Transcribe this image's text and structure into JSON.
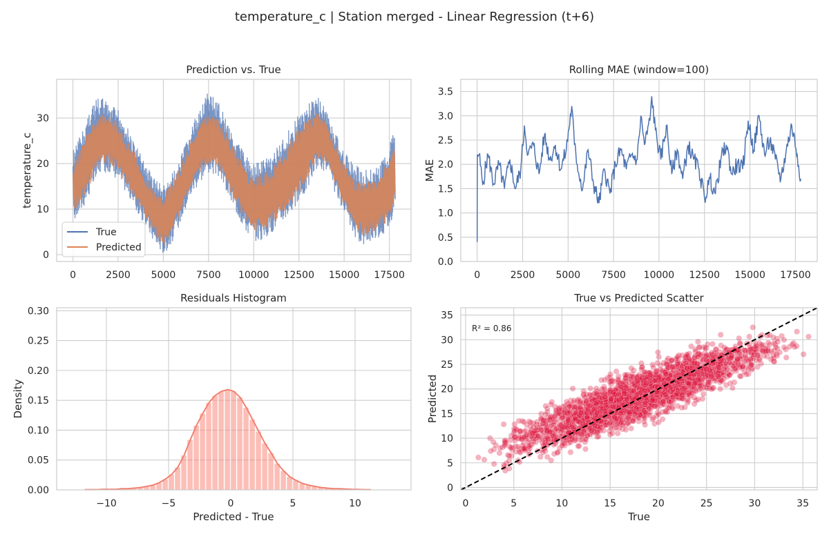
{
  "figure": {
    "title": "temperature_c | Station merged - Linear Regression (t+6)"
  },
  "chart_data": [
    {
      "type": "line",
      "title": "Prediction vs. True",
      "xlabel": "",
      "ylabel": "temperature_c",
      "xlim": [
        -900,
        18700
      ],
      "ylim": [
        -1.5,
        38.5
      ],
      "xticks": [
        0,
        2500,
        5000,
        7500,
        10000,
        12500,
        15000,
        17500
      ],
      "yticks": [
        0,
        10,
        20,
        30
      ],
      "legend": {
        "position": "lower-left",
        "entries": [
          "True",
          "Predicted"
        ]
      },
      "series": [
        {
          "name": "True",
          "color": "#4c72b0",
          "x": [
            0,
            500,
            1000,
            1500,
            2000,
            2500,
            3000,
            3500,
            4000,
            4500,
            5000,
            5500,
            6000,
            6500,
            7000,
            7500,
            8000,
            8500,
            9000,
            9500,
            10000,
            10500,
            11000,
            11500,
            12000,
            12500,
            13000,
            13500,
            14000,
            14500,
            15000,
            15500,
            16000,
            16500,
            17000,
            17500,
            17800
          ],
          "upper": [
            23,
            27,
            33,
            35,
            33,
            32,
            28,
            24,
            20,
            17,
            15,
            18,
            22,
            27,
            33,
            36,
            34,
            30,
            26,
            22,
            20,
            21,
            22,
            25,
            28,
            31,
            33,
            35,
            32,
            27,
            23,
            20,
            19,
            19,
            20,
            24,
            28
          ],
          "lower": [
            7,
            10,
            14,
            18,
            18,
            16,
            13,
            9,
            6,
            2,
            0,
            3,
            8,
            13,
            16,
            18,
            17,
            13,
            9,
            5,
            3,
            3,
            5,
            7,
            9,
            11,
            15,
            19,
            18,
            13,
            8,
            4,
            2,
            3,
            4,
            6,
            12
          ]
        },
        {
          "name": "Predicted",
          "color": "#dd8452",
          "x": [
            0,
            500,
            1000,
            1500,
            2000,
            2500,
            3000,
            3500,
            4000,
            4500,
            5000,
            5500,
            6000,
            6500,
            7000,
            7500,
            8000,
            8500,
            9000,
            9500,
            10000,
            10500,
            11000,
            11500,
            12000,
            12500,
            13000,
            13500,
            14000,
            14500,
            15000,
            15500,
            16000,
            16500,
            17000,
            17500,
            17800
          ],
          "upper": [
            20,
            24,
            29,
            31,
            31,
            29,
            25,
            22,
            17,
            14,
            13,
            16,
            20,
            25,
            29,
            31,
            30,
            27,
            23,
            19,
            17,
            18,
            19,
            22,
            25,
            28,
            30,
            32,
            29,
            25,
            20,
            17,
            16,
            16,
            18,
            21,
            24
          ],
          "lower": [
            9,
            12,
            16,
            20,
            20,
            18,
            15,
            11,
            8,
            4,
            2,
            5,
            10,
            15,
            18,
            20,
            19,
            15,
            11,
            7,
            5,
            5,
            7,
            9,
            11,
            13,
            17,
            21,
            20,
            15,
            10,
            6,
            4,
            5,
            6,
            8,
            13
          ]
        }
      ]
    },
    {
      "type": "line",
      "title": "Rolling MAE (window=100)",
      "xlabel": "",
      "ylabel": "MAE",
      "xlim": [
        -900,
        18700
      ],
      "ylim": [
        0,
        3.75
      ],
      "xticks": [
        0,
        2500,
        5000,
        7500,
        10000,
        12500,
        15000,
        17500
      ],
      "yticks": [
        0.0,
        0.5,
        1.0,
        1.5,
        2.0,
        2.5,
        3.0,
        3.5
      ],
      "series": [
        {
          "name": "MAE",
          "color": "#4c72b0",
          "x": [
            0,
            10,
            100,
            300,
            600,
            900,
            1200,
            1500,
            1800,
            2100,
            2400,
            2600,
            2800,
            3100,
            3400,
            3700,
            4000,
            4300,
            4600,
            4900,
            5200,
            5350,
            5500,
            5800,
            6100,
            6400,
            6700,
            7000,
            7300,
            7600,
            7900,
            8200,
            8500,
            8800,
            9000,
            9200,
            9500,
            9600,
            9800,
            10100,
            10400,
            10700,
            11000,
            11300,
            11600,
            11900,
            12200,
            12500,
            12800,
            13100,
            13400,
            13700,
            14000,
            14300,
            14600,
            14900,
            15200,
            15500,
            15800,
            16100,
            16400,
            16700,
            17000,
            17300,
            17600,
            17800
          ],
          "values": [
            0.4,
            2.2,
            2.2,
            1.6,
            2.2,
            1.6,
            2.0,
            1.5,
            2.1,
            1.5,
            1.9,
            2.8,
            2.2,
            2.4,
            1.8,
            2.6,
            2.1,
            2.4,
            1.9,
            2.3,
            3.2,
            2.4,
            2.0,
            1.5,
            2.3,
            1.6,
            1.2,
            1.9,
            1.4,
            2.0,
            2.3,
            1.9,
            2.2,
            2.1,
            3.0,
            2.4,
            2.9,
            3.4,
            2.7,
            2.1,
            2.8,
            1.8,
            2.3,
            1.7,
            2.4,
            2.1,
            1.9,
            1.3,
            1.7,
            1.4,
            2.1,
            2.4,
            1.8,
            2.0,
            1.9,
            2.9,
            2.3,
            3.0,
            2.2,
            2.5,
            2.1,
            1.7,
            2.3,
            2.8,
            2.2,
            1.7
          ]
        }
      ]
    },
    {
      "type": "bar",
      "title": "Residuals Histogram",
      "xlabel": "Predicted - True",
      "ylabel": "Density",
      "xlim": [
        -14,
        14.5
      ],
      "ylim": [
        0,
        0.305
      ],
      "xticks": [
        -10,
        -5,
        0,
        5,
        10
      ],
      "yticks": [
        0.0,
        0.05,
        0.1,
        0.15,
        0.2,
        0.25,
        0.3
      ],
      "bin_width": 0.5,
      "bin_starts": [
        -12,
        -11.5,
        -11,
        -10.5,
        -10,
        -9.5,
        -9,
        -8.5,
        -8,
        -7.5,
        -7,
        -6.5,
        -6,
        -5.5,
        -5,
        -4.5,
        -4,
        -3.5,
        -3,
        -2.5,
        -2,
        -1.5,
        -1,
        -0.5,
        0,
        0.5,
        1,
        1.5,
        2,
        2.5,
        3,
        3.5,
        4,
        4.5,
        5,
        5.5,
        6,
        6.5,
        7,
        7.5,
        8,
        8.5,
        9,
        9.5,
        10,
        10.5,
        11
      ],
      "values": [
        0.0005,
        0.0005,
        0.0005,
        0.001,
        0.001,
        0.001,
        0.002,
        0.002,
        0.003,
        0.004,
        0.006,
        0.008,
        0.012,
        0.018,
        0.026,
        0.038,
        0.058,
        0.084,
        0.108,
        0.128,
        0.146,
        0.158,
        0.165,
        0.168,
        0.165,
        0.155,
        0.138,
        0.118,
        0.098,
        0.078,
        0.062,
        0.044,
        0.032,
        0.022,
        0.016,
        0.011,
        0.008,
        0.006,
        0.004,
        0.003,
        0.002,
        0.002,
        0.0015,
        0.001,
        0.0008,
        0.0005,
        0.0005
      ],
      "color": "#fa8072",
      "kde_color": "#f08070"
    },
    {
      "type": "scatter",
      "title": "True vs Predicted Scatter",
      "xlabel": "True",
      "ylabel": "Predicted",
      "xlim": [
        -0.5,
        36.5
      ],
      "ylim": [
        -0.5,
        36.5
      ],
      "xticks": [
        0,
        5,
        10,
        15,
        20,
        25,
        30,
        35
      ],
      "yticks": [
        0,
        5,
        10,
        15,
        20,
        25,
        30,
        35
      ],
      "annotation": "R² = 0.86",
      "reference_line": "y = x",
      "color": "#dc143c",
      "band": {
        "x": [
          0,
          5,
          10,
          15,
          20,
          25,
          30,
          35,
          36
        ],
        "center": [
          5.5,
          9,
          12.5,
          16.5,
          20,
          24,
          27,
          29.5,
          30
        ],
        "spread": [
          2.5,
          3.2,
          3.6,
          3.8,
          3.8,
          3.6,
          3.2,
          2.5,
          2.2
        ]
      }
    }
  ]
}
